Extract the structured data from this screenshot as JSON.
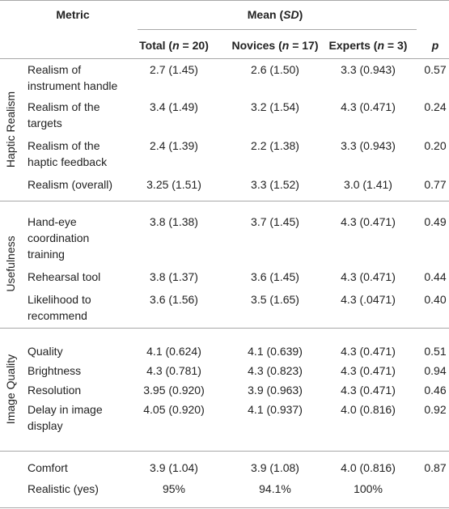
{
  "header": {
    "metric": "Metric",
    "mean": [
      "Mean (",
      "SD",
      ")"
    ],
    "columns": [
      [
        "Total (",
        "n",
        " = 20)"
      ],
      [
        "Novices (",
        "n",
        " = 17)"
      ],
      [
        "Experts (",
        "n",
        " = 3)"
      ]
    ],
    "p": "p"
  },
  "sections": [
    {
      "label": "Haptic Realism",
      "rows": [
        {
          "metric": "Realism of instrument handle",
          "total": "2.7 (1.45)",
          "novices": "2.6 (1.50)",
          "experts": "3.3 (0.943)",
          "p": "0.57"
        },
        {
          "metric": "Realism of the targets",
          "total": "3.4 (1.49)",
          "novices": "3.2 (1.54)",
          "experts": "4.3 (0.471)",
          "p": "0.24"
        },
        {
          "metric": "Realism of the haptic feedback",
          "total": "2.4 (1.39)",
          "novices": "2.2 (1.38)",
          "experts": "3.3 (0.943)",
          "p": "0.20"
        },
        {
          "metric": "Realism (overall)",
          "total": "3.25 (1.51)",
          "novices": "3.3 (1.52)",
          "experts": "3.0 (1.41)",
          "p": "0.77"
        }
      ]
    },
    {
      "label": "Usefulness",
      "rows": [
        {
          "metric": "Hand-eye coordination training",
          "total": "3.8 (1.38)",
          "novices": "3.7 (1.45)",
          "experts": "4.3 (0.471)",
          "p": "0.49"
        },
        {
          "metric": "Rehearsal tool",
          "total": "3.8 (1.37)",
          "novices": "3.6 (1.45)",
          "experts": "4.3 (0.471)",
          "p": "0.44"
        },
        {
          "metric": "Likelihood to recommend",
          "total": "3.6 (1.56)",
          "novices": "3.5 (1.65)",
          "experts": "4.3 (.0471)",
          "p": "0.40"
        }
      ]
    },
    {
      "label": "Image Quality",
      "rows": [
        {
          "metric": "Quality",
          "total": "4.1 (0.624)",
          "novices": "4.1 (0.639)",
          "experts": "4.3 (0.471)",
          "p": "0.51"
        },
        {
          "metric": "Brightness",
          "total": "4.3 (0.781)",
          "novices": "4.3 (0.823)",
          "experts": "4.3 (0.471)",
          "p": "0.94"
        },
        {
          "metric": "Resolution",
          "total": "3.95 (0.920)",
          "novices": "3.9 (0.963)",
          "experts": "4.3 (0.471)",
          "p": "0.46"
        },
        {
          "metric": "Delay in image display",
          "total": "4.05 (0.920)",
          "novices": "4.1 (0.937)",
          "experts": "4.0 (0.816)",
          "p": "0.92"
        }
      ]
    },
    {
      "rows": [
        {
          "metric": "Comfort",
          "total": "3.9 (1.04)",
          "novices": "3.9 (1.08)",
          "experts": "4.0 (0.816)",
          "p": "0.87"
        },
        {
          "metric": "Realistic (yes)",
          "total": "95%",
          "novices": "94.1%",
          "experts": "100%",
          "p": ""
        }
      ]
    }
  ]
}
